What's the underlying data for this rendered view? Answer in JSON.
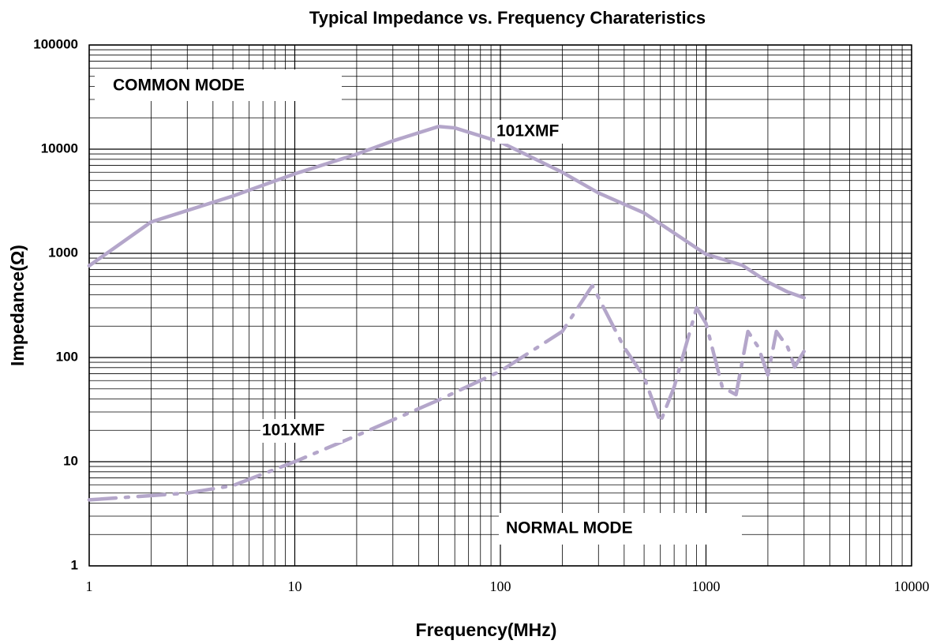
{
  "chart_data": {
    "type": "line",
    "title": "Typical Impedance vs. Frequency Charateristics",
    "x_label": "Frequency(MHz)",
    "y_label": "Impedance(Ω)",
    "annotations": [
      "COMMON MODE",
      "NORMAL MODE"
    ],
    "xlog": true,
    "ylog": true,
    "grid": true,
    "minor_grid": true,
    "xlim": [
      1,
      10000
    ],
    "xticks": [
      1,
      10,
      100,
      1000,
      10000
    ],
    "ylim": [
      1,
      100000
    ],
    "yticks": [
      1,
      10,
      100,
      1000,
      10000,
      100000
    ],
    "series": [
      {
        "name": "101XMF",
        "color": "#b4a6ca",
        "style": "solid",
        "x": [
          1,
          2,
          5,
          10,
          20,
          30,
          50,
          60,
          100,
          200,
          300,
          500,
          1000,
          1500,
          2000,
          2500,
          3000
        ],
        "values": [
          760,
          2000,
          3550,
          5800,
          8950,
          12000,
          16500,
          16000,
          11700,
          6000,
          3800,
          2440,
          980,
          770,
          530,
          425,
          375
        ]
      },
      {
        "name": "101XMF",
        "color": "#b4a6ca",
        "style": "dashdot",
        "x": [
          1,
          3,
          5,
          10,
          20,
          50,
          100,
          200,
          280,
          400,
          500,
          600,
          700,
          900,
          1000,
          1200,
          1400,
          1600,
          1800,
          2000,
          2200,
          2500,
          2700,
          3000
        ],
        "values": [
          4.3,
          5,
          5.9,
          10,
          17.8,
          39,
          74,
          178,
          490,
          125,
          65,
          24,
          52,
          300,
          213,
          52,
          44,
          178,
          125,
          68,
          178,
          125,
          81,
          115
        ]
      }
    ]
  }
}
